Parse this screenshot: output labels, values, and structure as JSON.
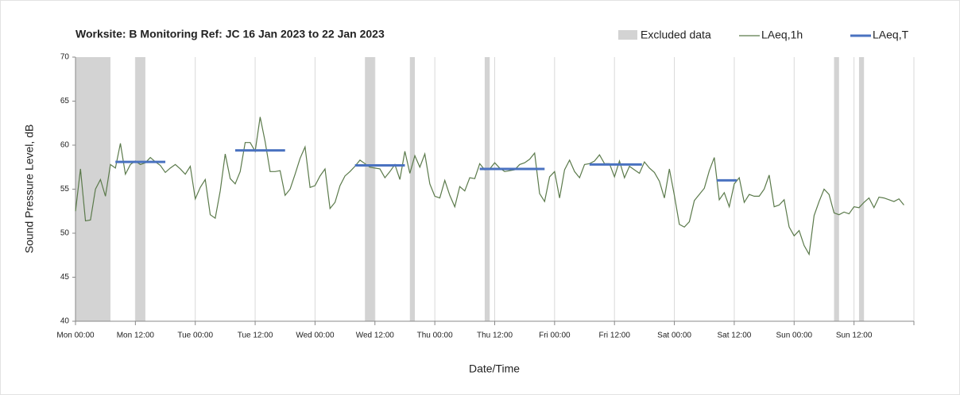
{
  "chart_data": {
    "type": "line",
    "title": "Worksite: B   Monitoring Ref: JC    16 Jan 2023 to 22 Jan 2023",
    "xlabel": "Date/Time",
    "ylabel": "Sound Pressure Level, dB",
    "xlim": [
      0,
      168
    ],
    "xticks": [
      {
        "value": 0,
        "label": "Mon 00:00"
      },
      {
        "value": 12,
        "label": "Mon 12:00"
      },
      {
        "value": 24,
        "label": "Tue 00:00"
      },
      {
        "value": 36,
        "label": "Tue 12:00"
      },
      {
        "value": 48,
        "label": "Wed 00:00"
      },
      {
        "value": 60,
        "label": "Wed 12:00"
      },
      {
        "value": 72,
        "label": "Thu 00:00"
      },
      {
        "value": 84,
        "label": "Thu 12:00"
      },
      {
        "value": 96,
        "label": "Fri 00:00"
      },
      {
        "value": 108,
        "label": "Fri 12:00"
      },
      {
        "value": 120,
        "label": "Sat 00:00"
      },
      {
        "value": 132,
        "label": "Sat 12:00"
      },
      {
        "value": 144,
        "label": "Sun 00:00"
      },
      {
        "value": 156,
        "label": "Sun 12:00"
      }
    ],
    "ylim": [
      40,
      70
    ],
    "yticks": [
      40,
      45,
      50,
      55,
      60,
      65,
      70
    ],
    "grid": "x",
    "excluded": {
      "name": "Excluded data",
      "color": "#d3d3d3",
      "ranges": [
        [
          0,
          7
        ],
        [
          12,
          14
        ],
        [
          58,
          60
        ],
        [
          67,
          68
        ],
        [
          82,
          83
        ],
        [
          152,
          153
        ],
        [
          157,
          158
        ]
      ]
    },
    "series": [
      {
        "name": "LAeq,1h",
        "color": "#5b7a4b",
        "x": [
          0,
          1,
          2,
          3,
          4,
          5,
          6,
          7,
          8,
          9,
          10,
          11,
          12,
          13,
          14,
          15,
          16,
          17,
          18,
          19,
          20,
          21,
          22,
          23,
          24,
          25,
          26,
          27,
          28,
          29,
          30,
          31,
          32,
          33,
          34,
          35,
          36,
          37,
          38,
          39,
          40,
          41,
          42,
          43,
          44,
          45,
          46,
          47,
          48,
          49,
          50,
          51,
          52,
          53,
          54,
          55,
          56,
          57,
          58,
          59,
          60,
          61,
          62,
          63,
          64,
          65,
          66,
          67,
          68,
          69,
          70,
          71,
          72,
          73,
          74,
          75,
          76,
          77,
          78,
          79,
          80,
          81,
          82,
          83,
          84,
          85,
          86,
          87,
          88,
          89,
          90,
          91,
          92,
          93,
          94,
          95,
          96,
          97,
          98,
          99,
          100,
          101,
          102,
          103,
          104,
          105,
          106,
          107,
          108,
          109,
          110,
          111,
          112,
          113,
          114,
          115,
          116,
          117,
          118,
          119,
          120,
          121,
          122,
          123,
          124,
          125,
          126,
          127,
          128,
          129,
          130,
          131,
          132,
          133,
          134,
          135,
          136,
          137,
          138,
          139,
          140,
          141,
          142,
          143,
          144,
          145,
          146,
          147,
          148,
          149,
          150,
          151,
          152,
          153,
          154,
          155,
          156,
          157,
          158,
          159,
          160,
          161,
          162,
          163,
          164,
          165,
          166
        ],
        "values": [
          52.5,
          57.3,
          51.4,
          51.5,
          55,
          56.1,
          54.2,
          57.8,
          57.4,
          60.2,
          56.7,
          57.8,
          58.2,
          57.8,
          58,
          58.6,
          58.1,
          57.7,
          56.9,
          57.4,
          57.8,
          57.3,
          56.7,
          57.6,
          53.9,
          55.2,
          56.1,
          52.1,
          51.7,
          54.8,
          59,
          56.2,
          55.6,
          57,
          60.3,
          60.3,
          59.3,
          63.2,
          60.4,
          57,
          57,
          57.1,
          54.3,
          55,
          56.7,
          58.5,
          59.8,
          55.2,
          55.4,
          56.5,
          57.3,
          52.8,
          53.5,
          55.4,
          56.5,
          57,
          57.6,
          58.3,
          57.9,
          57.5,
          57.4,
          57.3,
          56.3,
          57,
          57.8,
          56.1,
          59.3,
          56.8,
          58.8,
          57.5,
          59,
          55.6,
          54.2,
          54,
          56,
          54.3,
          53,
          55.3,
          54.8,
          56.3,
          56.2,
          57.9,
          57.2,
          57.3,
          58,
          57.4,
          57,
          57.1,
          57.2,
          57.8,
          58,
          58.4,
          59.1,
          54.5,
          53.6,
          56.4,
          57,
          54,
          57.2,
          58.3,
          57,
          56.3,
          57.8,
          57.9,
          58.2,
          58.9,
          57.9,
          57.9,
          56.4,
          58.2,
          56.3,
          57.6,
          57.2,
          56.8,
          58.1,
          57.4,
          56.9,
          55.9,
          54,
          57.3,
          54.3,
          51,
          50.7,
          51.3,
          53.7,
          54.4,
          55.1,
          57.1,
          58.6,
          53.8,
          54.6,
          53,
          55.6,
          56.3,
          53.5,
          54.4,
          54.2,
          54.2,
          55,
          56.6,
          53,
          53.2,
          53.8,
          50.7,
          49.7,
          50.3,
          48.6,
          47.6,
          52,
          53.6,
          55,
          54.4,
          52.3,
          52.1,
          52.4,
          52.2,
          53,
          52.9,
          53.5,
          54,
          52.9,
          54.1,
          54,
          53.8,
          53.6,
          53.9,
          53.2
        ]
      },
      {
        "name": "LAeq,T",
        "color": "#4a72c0",
        "segments": [
          {
            "x": [
              8,
              18
            ],
            "value": 58.1
          },
          {
            "x": [
              32,
              42
            ],
            "value": 59.4
          },
          {
            "x": [
              56,
              66
            ],
            "value": 57.7
          },
          {
            "x": [
              81,
              94
            ],
            "value": 57.3
          },
          {
            "x": [
              103,
              113.5
            ],
            "value": 57.8
          },
          {
            "x": [
              128.5,
              132.5
            ],
            "value": 56
          }
        ]
      }
    ]
  }
}
